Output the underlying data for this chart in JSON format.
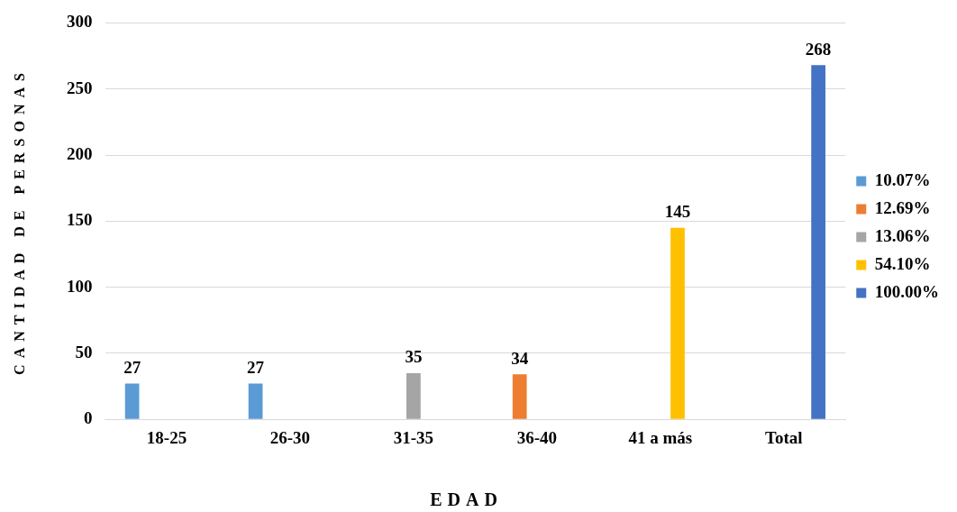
{
  "chart_data": {
    "type": "bar",
    "xlabel": "EDAD",
    "ylabel": "CANTIDAD DE PERSONAS",
    "categories": [
      "18-25",
      "26-30",
      "31-35",
      "36-40",
      "41 a más",
      "Total"
    ],
    "series": [
      {
        "name": "10.07%",
        "color": "#5b9bd5",
        "values": [
          27,
          27,
          null,
          null,
          null,
          null
        ]
      },
      {
        "name": "12.69%",
        "color": "#ed7d31",
        "values": [
          null,
          null,
          null,
          34,
          null,
          null
        ]
      },
      {
        "name": "13.06%",
        "color": "#a5a5a5",
        "values": [
          null,
          null,
          35,
          null,
          null,
          null
        ]
      },
      {
        "name": "54.10%",
        "color": "#ffc000",
        "values": [
          null,
          null,
          null,
          null,
          145,
          null
        ]
      },
      {
        "name": "100.00%",
        "color": "#4472c4",
        "values": [
          null,
          null,
          null,
          null,
          null,
          268
        ]
      }
    ],
    "ylim": [
      0,
      300
    ],
    "yticks": [
      0,
      50,
      100,
      150,
      200,
      250,
      300
    ],
    "grid": "y",
    "legend": "right",
    "data_labels": true
  }
}
